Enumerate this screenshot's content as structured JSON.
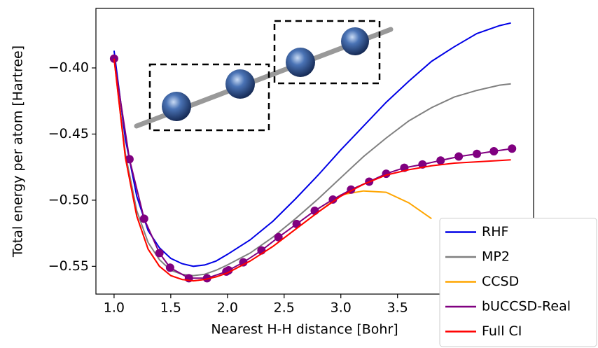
{
  "chart_data": {
    "type": "line",
    "xlabel": "Nearest H-H distance [Bohr]",
    "ylabel": "Total energy per atom [Hartree]",
    "xlim": [
      0.84,
      4.7
    ],
    "ylim": [
      -0.571,
      -0.355
    ],
    "xticks": [
      {
        "value": 1,
        "label": "1.0"
      },
      {
        "value": 1.5,
        "label": "1.5"
      },
      {
        "value": 2,
        "label": "2.0"
      },
      {
        "value": 2.5,
        "label": "2.5"
      },
      {
        "value": 3,
        "label": "3.0"
      },
      {
        "value": 3.5,
        "label": "3.5"
      }
    ],
    "yticks": [
      {
        "value": -0.4,
        "label": "−0.40"
      },
      {
        "value": -0.45,
        "label": "−0.45"
      },
      {
        "value": -0.5,
        "label": "−0.50"
      },
      {
        "value": -0.55,
        "label": "−0.55"
      }
    ],
    "legend": "lower right",
    "series": [
      {
        "name": "RHF",
        "color": "#0000e6",
        "markers": false,
        "x": [
          1.0,
          1.1,
          1.2,
          1.3,
          1.4,
          1.5,
          1.6,
          1.7,
          1.8,
          1.9,
          2.0,
          2.2,
          2.4,
          2.6,
          2.8,
          3.0,
          3.2,
          3.4,
          3.6,
          3.8,
          4.0,
          4.2,
          4.4,
          4.5
        ],
        "values": [
          -0.387,
          -0.454,
          -0.497,
          -0.523,
          -0.536,
          -0.544,
          -0.548,
          -0.55,
          -0.549,
          -0.546,
          -0.541,
          -0.53,
          -0.516,
          -0.499,
          -0.481,
          -0.462,
          -0.444,
          -0.426,
          -0.41,
          -0.395,
          -0.384,
          -0.374,
          -0.368,
          -0.366
        ]
      },
      {
        "name": "MP2",
        "color": "#808080",
        "markers": false,
        "x": [
          1.0,
          1.1,
          1.2,
          1.3,
          1.4,
          1.5,
          1.6,
          1.7,
          1.8,
          1.9,
          2.0,
          2.2,
          2.4,
          2.6,
          2.8,
          3.0,
          3.2,
          3.4,
          3.6,
          3.8,
          4.0,
          4.2,
          4.4,
          4.5
        ],
        "values": [
          -0.392,
          -0.465,
          -0.508,
          -0.532,
          -0.545,
          -0.553,
          -0.556,
          -0.557,
          -0.556,
          -0.553,
          -0.549,
          -0.54,
          -0.528,
          -0.514,
          -0.499,
          -0.483,
          -0.467,
          -0.453,
          -0.44,
          -0.43,
          -0.422,
          -0.417,
          -0.413,
          -0.412
        ]
      },
      {
        "name": "CCSD",
        "color": "#ffa500",
        "markers": false,
        "x": [
          1.0,
          1.1,
          1.2,
          1.3,
          1.4,
          1.5,
          1.6,
          1.7,
          1.8,
          1.9,
          2.0,
          2.2,
          2.4,
          2.6,
          2.8,
          3.0,
          3.2,
          3.4,
          3.6,
          3.8,
          4.0,
          4.2,
          4.4,
          4.5
        ],
        "values": [
          -0.393,
          -0.468,
          -0.512,
          -0.537,
          -0.55,
          -0.557,
          -0.56,
          -0.561,
          -0.56,
          -0.558,
          -0.555,
          -0.546,
          -0.535,
          -0.522,
          -0.509,
          -0.496,
          -0.493,
          -0.494,
          -0.502,
          -0.514,
          null,
          null,
          null,
          null
        ]
      },
      {
        "name": "bUCCSD-Real",
        "color": "#800080",
        "markers": true,
        "x": [
          1.0,
          1.136,
          1.265,
          1.4,
          1.494,
          1.66,
          1.82,
          1.99,
          2.01,
          2.14,
          2.3,
          2.45,
          2.61,
          2.77,
          2.93,
          3.09,
          3.25,
          3.4,
          3.56,
          3.72,
          3.88,
          4.04,
          4.2,
          4.35,
          4.51
        ],
        "values": [
          -0.393,
          -0.469,
          -0.514,
          -0.54,
          -0.551,
          -0.559,
          -0.559,
          -0.554,
          -0.553,
          -0.547,
          -0.538,
          -0.528,
          -0.518,
          -0.508,
          -0.4995,
          -0.492,
          -0.486,
          -0.48,
          -0.4755,
          -0.473,
          -0.47,
          -0.467,
          -0.465,
          -0.463,
          -0.461
        ]
      },
      {
        "name": "Full CI",
        "color": "#ff0000",
        "markers": false,
        "x": [
          1.0,
          1.1,
          1.2,
          1.3,
          1.4,
          1.5,
          1.6,
          1.7,
          1.8,
          1.9,
          2.0,
          2.2,
          2.4,
          2.6,
          2.8,
          3.0,
          3.2,
          3.4,
          3.6,
          3.8,
          4.0,
          4.2,
          4.4,
          4.5
        ],
        "values": [
          -0.393,
          -0.468,
          -0.512,
          -0.537,
          -0.55,
          -0.557,
          -0.56,
          -0.561,
          -0.56,
          -0.558,
          -0.555,
          -0.546,
          -0.535,
          -0.522,
          -0.509,
          -0.497,
          -0.488,
          -0.481,
          -0.477,
          -0.474,
          -0.472,
          -0.471,
          -0.47,
          -0.4695
        ]
      }
    ]
  }
}
